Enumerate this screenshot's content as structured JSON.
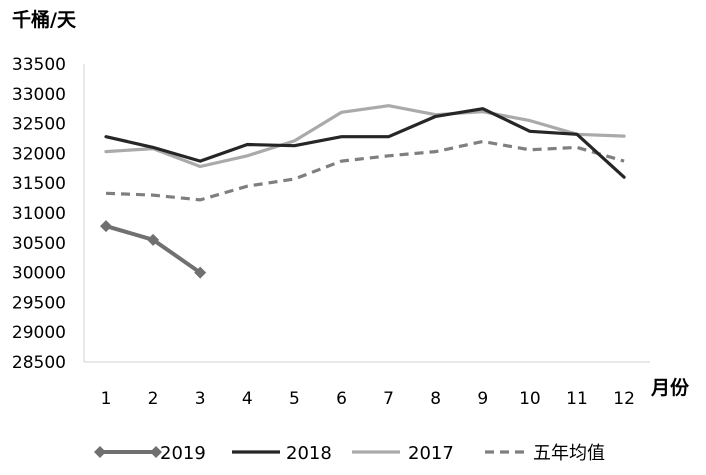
{
  "chart_data": {
    "type": "line",
    "title": "",
    "ylabel": "千桶/天",
    "xlabel": "月份",
    "x": [
      "1",
      "2",
      "3",
      "4",
      "5",
      "6",
      "7",
      "8",
      "9",
      "10",
      "11",
      "12"
    ],
    "ylim": [
      28500,
      33500
    ],
    "yticks": [
      "33500",
      "33000",
      "32500",
      "32000",
      "31500",
      "31000",
      "30500",
      "30000",
      "29500",
      "29000",
      "28500"
    ],
    "ytick_values": [
      33500,
      33000,
      32500,
      32000,
      31500,
      31000,
      30500,
      30000,
      29500,
      29000,
      28500
    ],
    "grid": false,
    "legend_position": "bottom",
    "series": [
      {
        "name": "2019",
        "values": [
          30780,
          30550,
          30000,
          null,
          null,
          null,
          null,
          null,
          null,
          null,
          null,
          null
        ],
        "color": "#707070",
        "style": "solid-diamond"
      },
      {
        "name": "2018",
        "values": [
          32280,
          32100,
          31870,
          32150,
          32130,
          32280,
          32280,
          32620,
          32750,
          32370,
          32320,
          31600
        ],
        "color": "#262626",
        "style": "solid"
      },
      {
        "name": "2017",
        "values": [
          32030,
          32080,
          31780,
          31960,
          32210,
          32690,
          32800,
          32650,
          32700,
          32550,
          32320,
          32290
        ],
        "color": "#aaaaaa",
        "style": "solid"
      },
      {
        "name": "五年均值",
        "values": [
          31330,
          31300,
          31220,
          31450,
          31570,
          31870,
          31960,
          32030,
          32200,
          32060,
          32100,
          31870
        ],
        "color": "#7f7f7f",
        "style": "dashed"
      }
    ]
  }
}
